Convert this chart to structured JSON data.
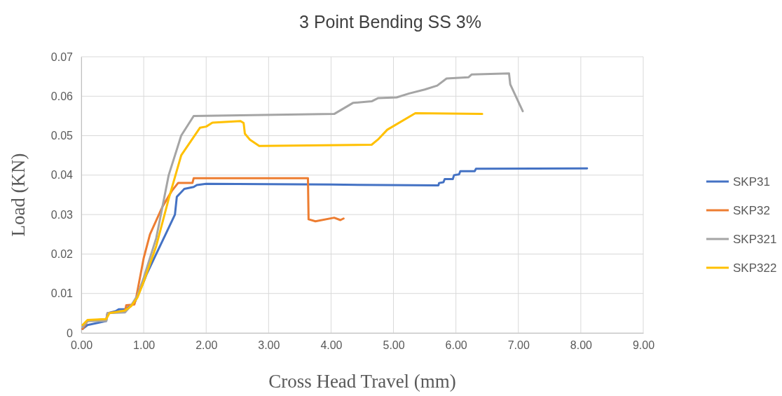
{
  "chart_data": {
    "type": "line",
    "title": "3 Point Bending SS 3%",
    "xlabel": "Cross Head Travel (mm)",
    "ylabel": "Load (KN)",
    "xlim": [
      0,
      9
    ],
    "ylim": [
      0,
      0.07
    ],
    "xticks": [
      {
        "value": 0,
        "label": "0.00"
      },
      {
        "value": 1,
        "label": "1.00"
      },
      {
        "value": 2,
        "label": "2.00"
      },
      {
        "value": 3,
        "label": "3.00"
      },
      {
        "value": 4,
        "label": "4.00"
      },
      {
        "value": 5,
        "label": "5.00"
      },
      {
        "value": 6,
        "label": "6.00"
      },
      {
        "value": 7,
        "label": "7.00"
      },
      {
        "value": 8,
        "label": "8.00"
      },
      {
        "value": 9,
        "label": "9.00"
      }
    ],
    "yticks": [
      0,
      0.01,
      0.02,
      0.03,
      0.04,
      0.05,
      0.06,
      0.07
    ],
    "grid": true,
    "legend": "right",
    "marker": "none",
    "line_style": "solid",
    "series": [
      {
        "name": "SKP31",
        "color": "#4472c4",
        "x": [
          0.02,
          0.1,
          0.4,
          0.42,
          0.55,
          0.6,
          0.7,
          0.75,
          0.85,
          1.0,
          1.05,
          1.2,
          1.35,
          1.5,
          1.53,
          1.65,
          1.8,
          1.85,
          2.0,
          4.0,
          5.72,
          5.73,
          5.8,
          5.82,
          5.95,
          5.97,
          6.05,
          6.07,
          6.3,
          6.32,
          8.1
        ],
        "values": [
          0.001,
          0.002,
          0.003,
          0.005,
          0.0055,
          0.006,
          0.006,
          0.0065,
          0.0075,
          0.013,
          0.015,
          0.02,
          0.025,
          0.03,
          0.0345,
          0.0365,
          0.037,
          0.0375,
          0.0378,
          0.0376,
          0.0374,
          0.038,
          0.0382,
          0.039,
          0.039,
          0.04,
          0.0402,
          0.041,
          0.041,
          0.0416,
          0.0417
        ]
      },
      {
        "name": "SKP32",
        "color": "#ed7d31",
        "x": [
          0.02,
          0.1,
          0.4,
          0.42,
          0.7,
          0.72,
          0.85,
          0.88,
          1.0,
          1.1,
          1.3,
          1.45,
          1.55,
          1.78,
          1.8,
          3.63,
          3.64,
          3.75,
          4.05,
          4.15,
          4.2
        ],
        "values": [
          0.001,
          0.003,
          0.0035,
          0.005,
          0.0055,
          0.007,
          0.0072,
          0.009,
          0.019,
          0.025,
          0.032,
          0.036,
          0.038,
          0.038,
          0.0392,
          0.0392,
          0.0288,
          0.0283,
          0.0292,
          0.0286,
          0.029
        ]
      },
      {
        "name": "SKP321",
        "color": "#a5a5a5",
        "x": [
          0.02,
          0.1,
          0.4,
          0.42,
          0.7,
          0.8,
          0.9,
          1.0,
          1.2,
          1.4,
          1.6,
          1.8,
          4.05,
          4.35,
          4.65,
          4.75,
          5.05,
          5.25,
          5.5,
          5.7,
          5.85,
          6.2,
          6.25,
          6.85,
          6.87,
          7.07
        ],
        "values": [
          0.0015,
          0.003,
          0.003,
          0.005,
          0.0052,
          0.007,
          0.0095,
          0.014,
          0.024,
          0.04,
          0.05,
          0.055,
          0.0555,
          0.0583,
          0.0587,
          0.0595,
          0.0597,
          0.0607,
          0.0617,
          0.0627,
          0.0645,
          0.0648,
          0.0655,
          0.0658,
          0.063,
          0.0562
        ]
      },
      {
        "name": "SKP322",
        "color": "#ffc000",
        "x": [
          0.02,
          0.1,
          0.4,
          0.45,
          0.7,
          0.8,
          0.9,
          1.0,
          1.2,
          1.4,
          1.6,
          1.9,
          2.0,
          2.1,
          2.55,
          2.6,
          2.62,
          2.7,
          2.85,
          4.65,
          4.75,
          4.9,
          5.35,
          6.42
        ],
        "values": [
          0.002,
          0.0033,
          0.0035,
          0.005,
          0.0057,
          0.0068,
          0.009,
          0.013,
          0.022,
          0.034,
          0.045,
          0.052,
          0.0523,
          0.0533,
          0.0537,
          0.0532,
          0.0505,
          0.049,
          0.0474,
          0.0477,
          0.049,
          0.0515,
          0.0557,
          0.0555
        ]
      }
    ]
  }
}
